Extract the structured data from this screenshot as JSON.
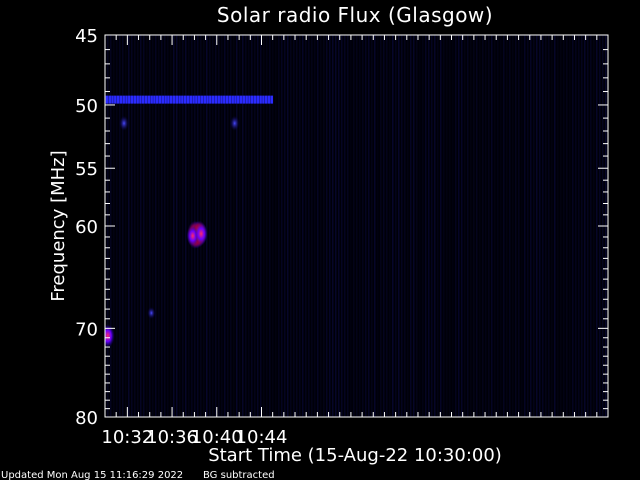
{
  "chart_data": {
    "type": "heatmap",
    "title": "Solar radio Flux (Glasgow)",
    "xlabel": "Start Time (15-Aug-22 10:30:00)",
    "ylabel": "Frequency [MHz]",
    "x_unit": "minutes after 10:30:00",
    "xlim": [
      0,
      45
    ],
    "ylim": [
      45,
      80
    ],
    "y_scale": "log",
    "y_inverted": true,
    "x_ticks": [
      {
        "value": 2,
        "label": "10:32"
      },
      {
        "value": 6,
        "label": "10:36"
      },
      {
        "value": 10,
        "label": "10:40"
      },
      {
        "value": 14,
        "label": "10:44"
      }
    ],
    "y_ticks": [
      {
        "value": 45,
        "label": "45"
      },
      {
        "value": 50,
        "label": "50"
      },
      {
        "value": 55,
        "label": "55"
      },
      {
        "value": 60,
        "label": "60"
      },
      {
        "value": 70,
        "label": "70"
      },
      {
        "value": 80,
        "label": "80"
      }
    ],
    "band_line": {
      "freq": 49.6,
      "t_start": 0.15,
      "t_end": 14.9,
      "spacing": 0.25,
      "color": "#2b2bff"
    },
    "features": [
      {
        "t": 8.05,
        "freq": 60.8,
        "intensity": 1.0
      },
      {
        "t": 8.25,
        "freq": 60.8,
        "intensity": 0.95
      },
      {
        "t": 8.45,
        "freq": 60.7,
        "intensity": 0.9
      },
      {
        "t": 7.85,
        "freq": 60.9,
        "intensity": 0.6
      },
      {
        "t": 8.6,
        "freq": 60.7,
        "intensity": 0.7
      },
      {
        "t": 0.25,
        "freq": 70.8,
        "intensity": 0.75
      },
      {
        "t": 1.7,
        "freq": 51.4,
        "intensity": 0.35
      },
      {
        "t": 11.6,
        "freq": 51.4,
        "intensity": 0.35
      },
      {
        "t": 4.15,
        "freq": 68.4,
        "intensity": 0.2
      }
    ],
    "colors": {
      "background": "#000000",
      "frame": "#ffffff"
    }
  },
  "footer": {
    "updated": "Updated Mon Aug 15 11:16:29 2022",
    "note": "BG subtracted"
  }
}
